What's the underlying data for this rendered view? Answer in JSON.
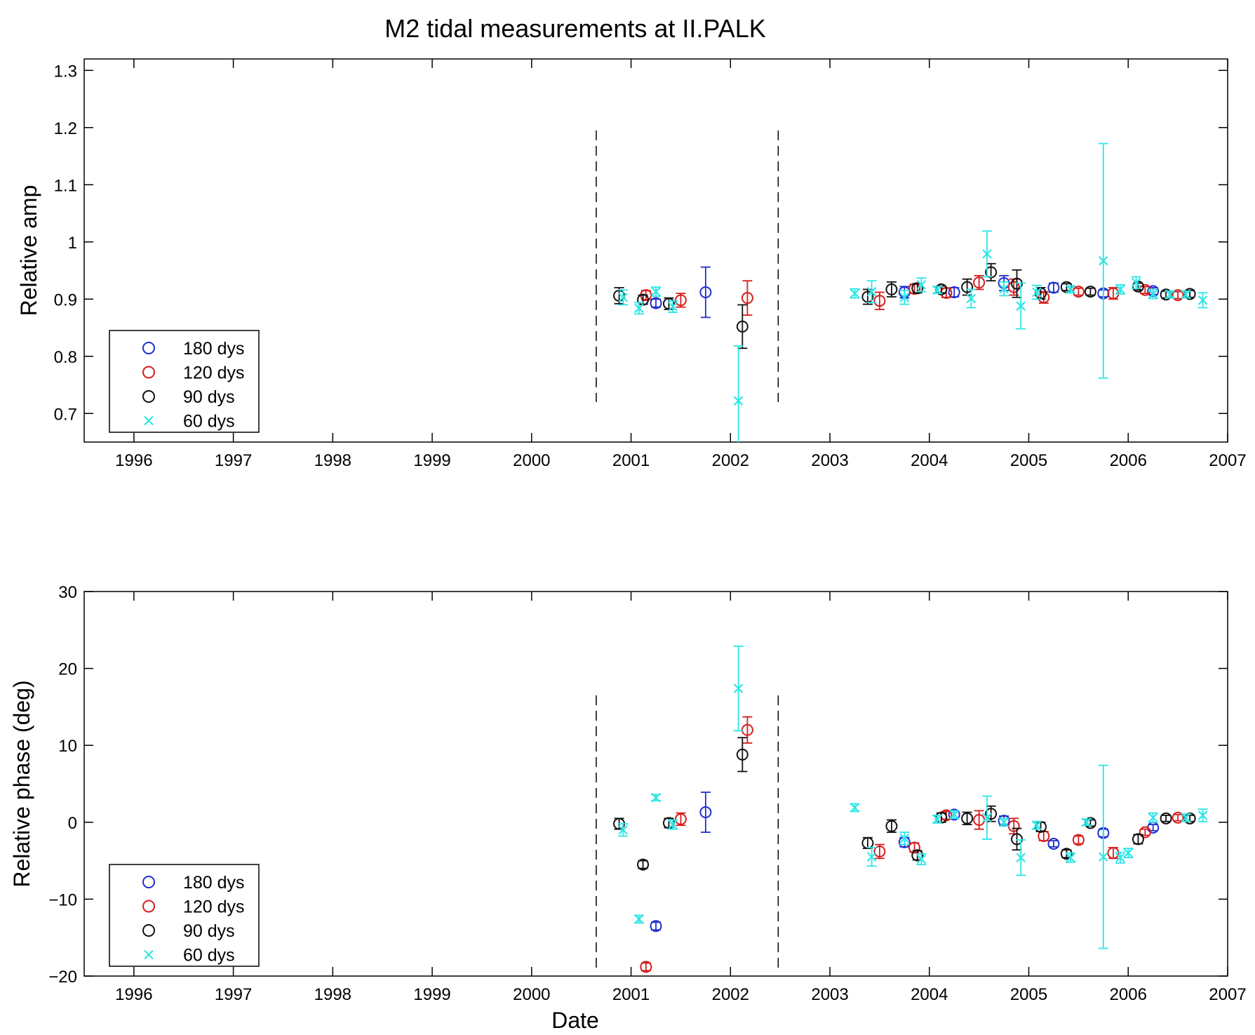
{
  "title": "M2 tidal measurements at II.PALK",
  "xlabel": "Date",
  "colors": {
    "180 dys": "#1f2fd0",
    "120 dys": "#d61d1d",
    "90 dys": "#111111",
    "60 dys": "#2ee6e6"
  },
  "chart_data": [
    {
      "type": "scatter",
      "ylabel": "Relative amp",
      "xlim": [
        1995.5,
        2007
      ],
      "ylim": [
        0.65,
        1.32
      ],
      "xticks": [
        "1996",
        "1997",
        "1998",
        "1999",
        "2000",
        "2001",
        "2002",
        "2003",
        "2004",
        "2005",
        "2006",
        "2007"
      ],
      "xtick_values": [
        1996,
        1997,
        1998,
        1999,
        2000,
        2001,
        2002,
        2003,
        2004,
        2005,
        2006,
        2007
      ],
      "yticks": [
        "0.7",
        "0.8",
        "0.9",
        "1",
        "1.1",
        "1.2",
        "1.3"
      ],
      "ytick_values": [
        0.7,
        0.8,
        0.9,
        1.0,
        1.1,
        1.2,
        1.3
      ],
      "vlines": [
        2000.65,
        2002.48
      ],
      "vline_range": [
        0.72,
        1.195
      ],
      "legend": {
        "placement": "bottom-left",
        "entries": [
          "180 dys",
          "120 dys",
          "90 dys",
          "60 dys"
        ]
      },
      "series": [
        {
          "name": "180 dys",
          "marker": "circle",
          "points": [
            {
              "x": 2001.25,
              "y": 0.893,
              "err": 0.007
            },
            {
              "x": 2001.75,
              "y": 0.912,
              "err": 0.044
            },
            {
              "x": 2003.75,
              "y": 0.912,
              "err": 0.01
            },
            {
              "x": 2004.25,
              "y": 0.912,
              "err": 0.008
            },
            {
              "x": 2004.75,
              "y": 0.928,
              "err": 0.013
            },
            {
              "x": 2005.25,
              "y": 0.92,
              "err": 0.008
            },
            {
              "x": 2005.75,
              "y": 0.91,
              "err": 0.006
            },
            {
              "x": 2006.25,
              "y": 0.914,
              "err": 0.006
            }
          ]
        },
        {
          "name": "120 dys",
          "marker": "circle",
          "points": [
            {
              "x": 2001.15,
              "y": 0.907,
              "err": 0.008
            },
            {
              "x": 2001.5,
              "y": 0.898,
              "err": 0.012
            },
            {
              "x": 2002.17,
              "y": 0.902,
              "err": 0.03
            },
            {
              "x": 2003.5,
              "y": 0.897,
              "err": 0.015
            },
            {
              "x": 2003.85,
              "y": 0.918,
              "err": 0.008
            },
            {
              "x": 2004.17,
              "y": 0.911,
              "err": 0.008
            },
            {
              "x": 2004.5,
              "y": 0.929,
              "err": 0.012
            },
            {
              "x": 2004.85,
              "y": 0.921,
              "err": 0.014
            },
            {
              "x": 2005.15,
              "y": 0.903,
              "err": 0.01
            },
            {
              "x": 2005.5,
              "y": 0.913,
              "err": 0.006
            },
            {
              "x": 2005.85,
              "y": 0.91,
              "err": 0.01
            },
            {
              "x": 2006.17,
              "y": 0.916,
              "err": 0.006
            },
            {
              "x": 2006.5,
              "y": 0.907,
              "err": 0.006
            }
          ]
        },
        {
          "name": "90 dys",
          "marker": "circle",
          "points": [
            {
              "x": 2000.88,
              "y": 0.906,
              "err": 0.014
            },
            {
              "x": 2001.12,
              "y": 0.899,
              "err": 0.008
            },
            {
              "x": 2001.38,
              "y": 0.892,
              "err": 0.01
            },
            {
              "x": 2002.12,
              "y": 0.852,
              "err": 0.038
            },
            {
              "x": 2003.38,
              "y": 0.904,
              "err": 0.013
            },
            {
              "x": 2003.62,
              "y": 0.917,
              "err": 0.013
            },
            {
              "x": 2003.88,
              "y": 0.919,
              "err": 0.008
            },
            {
              "x": 2004.12,
              "y": 0.917,
              "err": 0.006
            },
            {
              "x": 2004.38,
              "y": 0.921,
              "err": 0.014
            },
            {
              "x": 2004.62,
              "y": 0.947,
              "err": 0.015
            },
            {
              "x": 2004.88,
              "y": 0.927,
              "err": 0.024
            },
            {
              "x": 2005.12,
              "y": 0.91,
              "err": 0.01
            },
            {
              "x": 2005.38,
              "y": 0.921,
              "err": 0.006
            },
            {
              "x": 2005.62,
              "y": 0.913,
              "err": 0.006
            },
            {
              "x": 2006.1,
              "y": 0.922,
              "err": 0.006
            },
            {
              "x": 2006.38,
              "y": 0.908,
              "err": 0.006
            },
            {
              "x": 2006.62,
              "y": 0.909,
              "err": 0.006
            }
          ]
        },
        {
          "name": "60 dys",
          "marker": "x",
          "points": [
            {
              "x": 2000.92,
              "y": 0.903,
              "err": 0.013
            },
            {
              "x": 2001.08,
              "y": 0.884,
              "err": 0.01
            },
            {
              "x": 2001.25,
              "y": 0.913,
              "err": 0.008
            },
            {
              "x": 2001.42,
              "y": 0.887,
              "err": 0.01
            },
            {
              "x": 2002.08,
              "y": 0.722,
              "err": 0.096
            },
            {
              "x": 2003.25,
              "y": 0.91,
              "err": 0.008
            },
            {
              "x": 2003.42,
              "y": 0.913,
              "err": 0.019
            },
            {
              "x": 2003.75,
              "y": 0.903,
              "err": 0.012
            },
            {
              "x": 2003.92,
              "y": 0.925,
              "err": 0.012
            },
            {
              "x": 2004.08,
              "y": 0.916,
              "err": 0.006
            },
            {
              "x": 2004.42,
              "y": 0.901,
              "err": 0.016
            },
            {
              "x": 2004.58,
              "y": 0.979,
              "err": 0.04
            },
            {
              "x": 2004.75,
              "y": 0.918,
              "err": 0.012
            },
            {
              "x": 2004.92,
              "y": 0.888,
              "err": 0.04
            },
            {
              "x": 2005.08,
              "y": 0.912,
              "err": 0.012
            },
            {
              "x": 2005.42,
              "y": 0.917,
              "err": 0.006
            },
            {
              "x": 2005.75,
              "y": 0.967,
              "err": 0.205
            },
            {
              "x": 2005.92,
              "y": 0.917,
              "err": 0.008
            },
            {
              "x": 2006.08,
              "y": 0.929,
              "err": 0.01
            },
            {
              "x": 2006.25,
              "y": 0.909,
              "err": 0.008
            },
            {
              "x": 2006.42,
              "y": 0.908,
              "err": 0.006
            },
            {
              "x": 2006.58,
              "y": 0.908,
              "err": 0.006
            },
            {
              "x": 2006.75,
              "y": 0.898,
              "err": 0.013
            }
          ]
        }
      ]
    },
    {
      "type": "scatter",
      "ylabel": "Relative phase (deg)",
      "xlim": [
        1995.5,
        2007
      ],
      "ylim": [
        -20,
        30
      ],
      "xticks": [
        "1996",
        "1997",
        "1998",
        "1999",
        "2000",
        "2001",
        "2002",
        "2003",
        "2004",
        "2005",
        "2006",
        "2007"
      ],
      "xtick_values": [
        1996,
        1997,
        1998,
        1999,
        2000,
        2001,
        2002,
        2003,
        2004,
        2005,
        2006,
        2007
      ],
      "yticks": [
        "−20",
        "−10",
        "0",
        "10",
        "20",
        "30"
      ],
      "ytick_values": [
        -20,
        -10,
        0,
        10,
        20,
        30
      ],
      "vlines": [
        2000.65,
        2002.48
      ],
      "vline_range": [
        -19.5,
        16.5
      ],
      "legend": {
        "placement": "bottom-left",
        "entries": [
          "180 dys",
          "120 dys",
          "90 dys",
          "60 dys"
        ]
      },
      "series": [
        {
          "name": "180 dys",
          "marker": "circle",
          "points": [
            {
              "x": 2001.25,
              "y": -13.5,
              "err": 0.5
            },
            {
              "x": 2001.75,
              "y": 1.3,
              "err": 2.6
            },
            {
              "x": 2003.75,
              "y": -2.6,
              "err": 0.6
            },
            {
              "x": 2004.25,
              "y": 1.0,
              "err": 0.5
            },
            {
              "x": 2004.75,
              "y": 0.2,
              "err": 0.6
            },
            {
              "x": 2005.25,
              "y": -2.8,
              "err": 0.4
            },
            {
              "x": 2005.75,
              "y": -1.4,
              "err": 0.5
            },
            {
              "x": 2006.25,
              "y": -0.7,
              "err": 0.4
            }
          ]
        },
        {
          "name": "120 dys",
          "marker": "circle",
          "points": [
            {
              "x": 2001.15,
              "y": -18.8,
              "err": 0.5
            },
            {
              "x": 2001.5,
              "y": 0.4,
              "err": 0.8
            },
            {
              "x": 2002.17,
              "y": 12.0,
              "err": 1.7
            },
            {
              "x": 2003.5,
              "y": -3.8,
              "err": 0.9
            },
            {
              "x": 2003.85,
              "y": -3.3,
              "err": 0.6
            },
            {
              "x": 2004.17,
              "y": 0.9,
              "err": 0.5
            },
            {
              "x": 2004.5,
              "y": 0.3,
              "err": 1.2
            },
            {
              "x": 2004.85,
              "y": -0.5,
              "err": 1.0
            },
            {
              "x": 2005.15,
              "y": -1.8,
              "err": 0.6
            },
            {
              "x": 2005.5,
              "y": -2.3,
              "err": 0.5
            },
            {
              "x": 2005.85,
              "y": -4.0,
              "err": 0.7
            },
            {
              "x": 2006.17,
              "y": -1.3,
              "err": 0.4
            },
            {
              "x": 2006.5,
              "y": 0.6,
              "err": 0.4
            }
          ]
        },
        {
          "name": "90 dys",
          "marker": "circle",
          "points": [
            {
              "x": 2000.88,
              "y": -0.2,
              "err": 0.7
            },
            {
              "x": 2001.12,
              "y": -5.5,
              "err": 0.5
            },
            {
              "x": 2001.38,
              "y": -0.1,
              "err": 0.6
            },
            {
              "x": 2002.12,
              "y": 8.8,
              "err": 2.2
            },
            {
              "x": 2003.38,
              "y": -2.7,
              "err": 0.7
            },
            {
              "x": 2003.62,
              "y": -0.5,
              "err": 0.8
            },
            {
              "x": 2003.88,
              "y": -4.3,
              "err": 0.6
            },
            {
              "x": 2004.12,
              "y": 0.6,
              "err": 0.6
            },
            {
              "x": 2004.38,
              "y": 0.5,
              "err": 0.8
            },
            {
              "x": 2004.62,
              "y": 1.1,
              "err": 1.0
            },
            {
              "x": 2004.88,
              "y": -2.2,
              "err": 1.4
            },
            {
              "x": 2005.12,
              "y": -0.6,
              "err": 0.6
            },
            {
              "x": 2005.38,
              "y": -4.1,
              "err": 0.5
            },
            {
              "x": 2005.62,
              "y": -0.1,
              "err": 0.4
            },
            {
              "x": 2006.1,
              "y": -2.2,
              "err": 0.6
            },
            {
              "x": 2006.38,
              "y": 0.5,
              "err": 0.4
            },
            {
              "x": 2006.62,
              "y": 0.5,
              "err": 0.4
            }
          ]
        },
        {
          "name": "60 dys",
          "marker": "x",
          "points": [
            {
              "x": 2000.92,
              "y": -1.0,
              "err": 0.8
            },
            {
              "x": 2001.08,
              "y": -12.6,
              "err": 0.5
            },
            {
              "x": 2001.25,
              "y": 3.2,
              "err": 0.4
            },
            {
              "x": 2001.42,
              "y": -0.3,
              "err": 0.6
            },
            {
              "x": 2002.08,
              "y": 17.4,
              "err": 5.5
            },
            {
              "x": 2003.25,
              "y": 1.9,
              "err": 0.5
            },
            {
              "x": 2003.42,
              "y": -4.5,
              "err": 1.2
            },
            {
              "x": 2003.75,
              "y": -2.1,
              "err": 0.8
            },
            {
              "x": 2003.92,
              "y": -4.8,
              "err": 0.7
            },
            {
              "x": 2004.08,
              "y": 0.4,
              "err": 0.5
            },
            {
              "x": 2004.25,
              "y": 1.0,
              "err": 0.5
            },
            {
              "x": 2004.58,
              "y": 0.6,
              "err": 2.8
            },
            {
              "x": 2004.75,
              "y": 0.0,
              "err": 0.5
            },
            {
              "x": 2004.92,
              "y": -4.6,
              "err": 2.3
            },
            {
              "x": 2005.08,
              "y": -0.4,
              "err": 0.5
            },
            {
              "x": 2005.42,
              "y": -4.6,
              "err": 0.6
            },
            {
              "x": 2005.58,
              "y": 0.0,
              "err": 0.4
            },
            {
              "x": 2005.75,
              "y": -4.5,
              "err": 11.9
            },
            {
              "x": 2005.92,
              "y": -4.6,
              "err": 0.7
            },
            {
              "x": 2006.0,
              "y": -4.0,
              "err": 0.6
            },
            {
              "x": 2006.25,
              "y": 0.6,
              "err": 0.6
            },
            {
              "x": 2006.58,
              "y": 0.6,
              "err": 0.5
            },
            {
              "x": 2006.75,
              "y": 0.9,
              "err": 0.8
            }
          ]
        }
      ]
    }
  ]
}
